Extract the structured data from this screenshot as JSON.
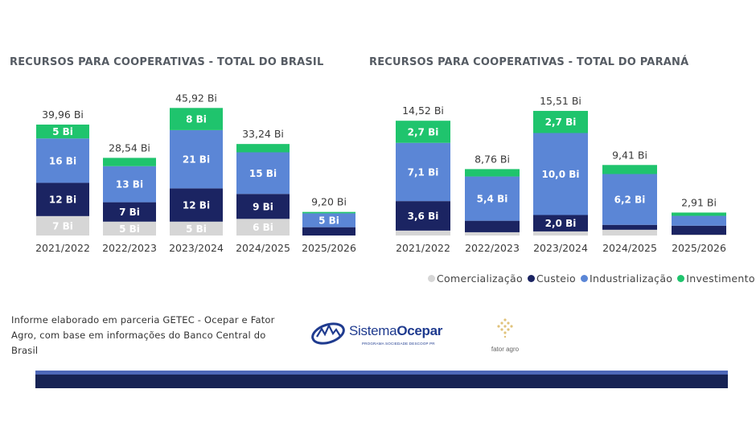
{
  "colors": {
    "Comercialização": "#d6d6d6",
    "Custeio": "#1b2462",
    "Industrialização": "#5b86d6",
    "Investimento": "#1fc46d"
  },
  "chart_data": [
    {
      "type": "bar",
      "stacked": true,
      "title": "RECURSOS PARA COOPERATIVAS - TOTAL DO BRASIL",
      "categories": [
        "2021/2022",
        "2022/2023",
        "2023/2024",
        "2024/2025",
        "2025/2026"
      ],
      "totals": [
        "39,96 Bi",
        "28,54 Bi",
        "45,92 Bi",
        "33,24 Bi",
        "9,20 Bi"
      ],
      "totals_values": [
        39.96,
        28.54,
        45.92,
        33.24,
        9.2
      ],
      "series": [
        {
          "name": "Comercialização",
          "values": [
            7,
            5,
            5,
            6,
            0
          ],
          "labels": [
            "7 Bi",
            "5 Bi",
            "5 Bi",
            "6 Bi",
            ""
          ]
        },
        {
          "name": "Custeio",
          "values": [
            12,
            7,
            12,
            9,
            3
          ],
          "labels": [
            "12 Bi",
            "7 Bi",
            "12 Bi",
            "9 Bi",
            ""
          ]
        },
        {
          "name": "Industrialização",
          "values": [
            16,
            13,
            21,
            15,
            5
          ],
          "labels": [
            "16 Bi",
            "13 Bi",
            "21 Bi",
            "15 Bi",
            "5 Bi"
          ]
        },
        {
          "name": "Investimento",
          "values": [
            5,
            3,
            8,
            3,
            0.5
          ],
          "labels": [
            "5 Bi",
            "",
            "8 Bi",
            "",
            ""
          ]
        }
      ]
    },
    {
      "type": "bar",
      "stacked": true,
      "title": "RECURSOS PARA COOPERATIVAS - TOTAL DO PARANÁ",
      "categories": [
        "2021/2022",
        "2022/2023",
        "2023/2024",
        "2024/2025",
        "2025/2026"
      ],
      "totals": [
        "14,52 Bi",
        "8,76 Bi",
        "15,51 Bi",
        "9,41 Bi",
        "2,91 Bi"
      ],
      "totals_values": [
        14.52,
        8.76,
        15.51,
        9.41,
        2.91
      ],
      "series": [
        {
          "name": "Comercialização",
          "values": [
            0.6,
            0.4,
            0.5,
            0.7,
            0.1
          ],
          "labels": [
            "",
            "",
            "",
            "",
            ""
          ]
        },
        {
          "name": "Custeio",
          "values": [
            3.6,
            1.4,
            2.0,
            0.6,
            1.1
          ],
          "labels": [
            "3,6 Bi",
            "",
            "2,0 Bi",
            "",
            ""
          ]
        },
        {
          "name": "Industrialização",
          "values": [
            7.1,
            5.4,
            10.0,
            6.2,
            1.2
          ],
          "labels": [
            "7,1 Bi",
            "5,4 Bi",
            "10,0 Bi",
            "6,2 Bi",
            ""
          ]
        },
        {
          "name": "Investimento",
          "values": [
            2.7,
            0.9,
            2.7,
            1.1,
            0.4
          ],
          "labels": [
            "2,7 Bi",
            "",
            "2,7 Bi",
            "",
            ""
          ]
        }
      ]
    }
  ],
  "legend": [
    "Comercialização",
    "Custeio",
    "Industrialização",
    "Investimento"
  ],
  "footnote": "Informe elaborado em parceria GETEC - Ocepar e Fator Agro, com base em informações do Banco Central do Brasil",
  "logos": {
    "ocepar_light": "Sistema",
    "ocepar_bold": "Ocepar",
    "ocepar_tagline": "PROGRAMA SOCIEDADE DESCOOP PR",
    "fator": "fator agro"
  }
}
